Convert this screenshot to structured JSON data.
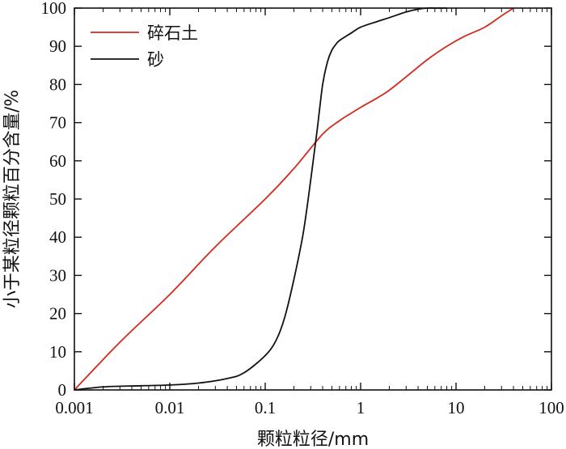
{
  "chart_data": {
    "type": "line",
    "xlabel": "颗粒粒径/mm",
    "ylabel": "小于某粒径颗粒百分含量/%",
    "x_scale": "log",
    "xlim": [
      0.001,
      100
    ],
    "ylim": [
      0,
      100
    ],
    "x_ticks": [
      0.001,
      0.01,
      0.1,
      1,
      10,
      100
    ],
    "x_tick_labels": [
      "0.001",
      "0.01",
      "0.1",
      "1",
      "10",
      "100"
    ],
    "y_ticks": [
      0,
      10,
      20,
      30,
      40,
      50,
      60,
      70,
      80,
      90,
      100
    ],
    "y_tick_labels": [
      "0",
      "10",
      "20",
      "30",
      "40",
      "50",
      "60",
      "70",
      "80",
      "90",
      "100"
    ],
    "grid": false,
    "legend_position": "top-left",
    "series": [
      {
        "name": "碎石土",
        "color": "#d42a1e",
        "x": [
          0.001,
          0.003,
          0.01,
          0.03,
          0.1,
          0.2,
          0.4,
          0.6,
          0.8,
          1.0,
          1.5,
          2.0,
          3.0,
          5.0,
          8.0,
          12.0,
          20.0,
          30.0,
          40.0
        ],
        "y": [
          0,
          12.5,
          25,
          37.5,
          50,
          58,
          67,
          70.5,
          72.5,
          74,
          76.5,
          78.5,
          82,
          86.5,
          90,
          92.5,
          95,
          98,
          100
        ]
      },
      {
        "name": "砂",
        "color": "#111111",
        "x": [
          0.001,
          0.002,
          0.005,
          0.01,
          0.02,
          0.04,
          0.06,
          0.1,
          0.13,
          0.16,
          0.2,
          0.25,
          0.3,
          0.35,
          0.4,
          0.45,
          0.5,
          0.55,
          0.6,
          0.8,
          1.0,
          1.5,
          2.0,
          3.0,
          4.0,
          5.0,
          6.0,
          8.0
        ],
        "y": [
          0,
          0.8,
          1.1,
          1.3,
          1.8,
          3,
          4.5,
          9,
          13,
          19,
          29,
          41,
          55,
          68,
          80,
          86,
          89,
          90.5,
          91.5,
          93.5,
          95,
          96.5,
          97.5,
          99,
          99.7,
          100,
          100,
          100
        ]
      }
    ]
  }
}
